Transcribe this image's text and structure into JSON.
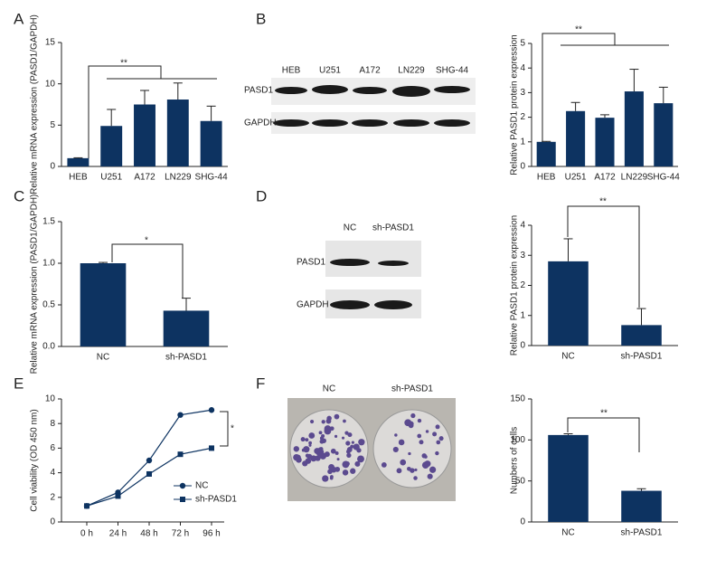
{
  "chart_data": [
    {
      "panel": "A",
      "type": "bar",
      "categories": [
        "HEB",
        "U251",
        "A172",
        "LN229",
        "SHG-44"
      ],
      "values": [
        1,
        4.9,
        7.5,
        8.1,
        5.5
      ],
      "errors": [
        0.05,
        2.0,
        1.7,
        2.0,
        1.8
      ],
      "color": "#0d3361",
      "ylim": [
        0,
        15
      ],
      "yticks": [
        0,
        5,
        10,
        15
      ],
      "ylabel": "Relative mRNA expression (PASD1/GAPDH)",
      "annotation": "**"
    },
    {
      "panel": "B",
      "type": "bar",
      "categories": [
        "HEB",
        "U251",
        "A172",
        "LN229",
        "SHG-44"
      ],
      "values": [
        1,
        2.25,
        1.98,
        3.05,
        2.57
      ],
      "errors": [
        0.02,
        0.35,
        0.12,
        0.9,
        0.65
      ],
      "color": "#0d3361",
      "ylim": [
        0,
        5
      ],
      "yticks": [
        0,
        1,
        2,
        3,
        4,
        5
      ],
      "ylabel": "Relative PASD1 protein expression",
      "annotation": "**"
    },
    {
      "panel": "C",
      "type": "bar",
      "categories": [
        "NC",
        "sh-PASD1"
      ],
      "values": [
        1.0,
        0.43
      ],
      "errors": [
        0.01,
        0.15
      ],
      "color": "#0d3361",
      "ylim": [
        0,
        1.5
      ],
      "yticks": [
        {
          "value": 0,
          "label": "0.0"
        },
        0.5,
        {
          "value": 1,
          "label": "1.0"
        },
        1.5
      ],
      "ylabel": "Relative mRNA expression (PASD1/GAPDH)",
      "annotation": "*"
    },
    {
      "panel": "D",
      "type": "bar",
      "categories": [
        "NC",
        "sh-PASD1"
      ],
      "values": [
        2.8,
        0.68
      ],
      "errors": [
        0.75,
        0.55
      ],
      "color": "#0d3361",
      "ylim": [
        0,
        4
      ],
      "yticks": [
        0,
        1,
        2,
        3,
        4
      ],
      "ylabel": "Relative PASD1 protein expression",
      "annotation": "**"
    },
    {
      "panel": "E",
      "type": "line",
      "categories": [
        "0 h",
        "24 h",
        "48 h",
        "72 h",
        "96 h"
      ],
      "series": [
        {
          "name": "NC",
          "color": "#0d3361",
          "values": [
            1.3,
            2.4,
            5.0,
            8.7,
            9.1
          ]
        },
        {
          "name": "sh-PASD1",
          "color": "#0d3361",
          "values": [
            1.3,
            2.1,
            3.9,
            5.5,
            6.0
          ]
        }
      ],
      "ylim": [
        0,
        10
      ],
      "yticks": [
        0,
        2,
        4,
        6,
        8,
        10
      ],
      "ylabel": "Cell viability (OD 450 nm)",
      "annotation": "*"
    },
    {
      "panel": "F",
      "type": "bar",
      "categories": [
        "NC",
        "sh-PASD1"
      ],
      "values": [
        106,
        38
      ],
      "errors": [
        1.5,
        2.5
      ],
      "color": "#0d3361",
      "ylim": [
        0,
        150
      ],
      "yticks": [
        0,
        50,
        100,
        150
      ],
      "ylabel": "Numbers of cells",
      "annotation": "**"
    }
  ],
  "blots": [
    {
      "lanes": [
        "HEB",
        "U251",
        "A172",
        "LN229",
        "SHG-44"
      ],
      "rows": [
        "PASD1",
        "GAPDH"
      ]
    },
    {
      "lanes": [
        "NC",
        "sh-PASD1"
      ],
      "rows": [
        "PASD1",
        "GAPDH"
      ]
    }
  ],
  "colonies": {
    "labels": [
      "NC",
      "sh-PASD1"
    ]
  }
}
